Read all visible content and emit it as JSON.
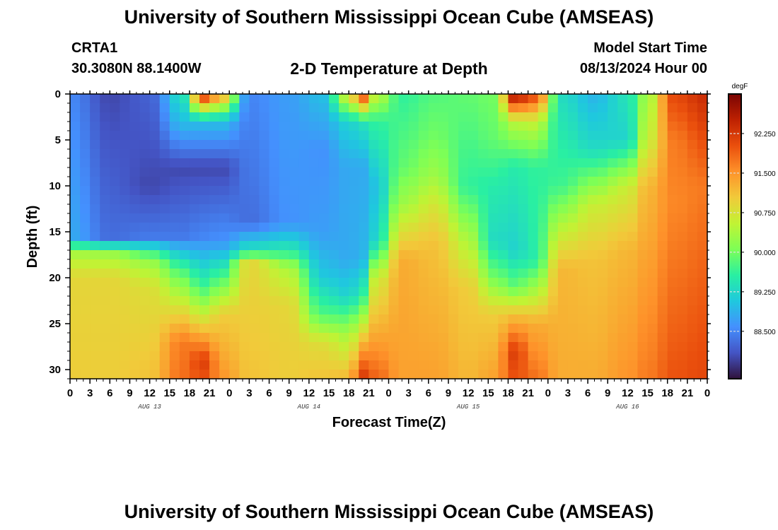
{
  "header": {
    "title": "University of Southern Mississippi Ocean Cube (AMSEAS)",
    "station_id": "CRTA1",
    "station_coords": "30.3080N  88.1400W",
    "plot_title": "2-D Temperature at Depth",
    "model_label": "Model Start Time",
    "model_time": "08/13/2024 Hour 00"
  },
  "footer": {
    "title": "University of Southern Mississippi Ocean Cube (AMSEAS)"
  },
  "chart_data": {
    "type": "heatmap",
    "title": "2-D Temperature at Depth",
    "xlabel": "Forecast Time(Z)",
    "ylabel": "Depth (ft)",
    "x_hours_range": [
      0,
      96
    ],
    "x_tick_labels": [
      "0",
      "3",
      "6",
      "9",
      "12",
      "15",
      "18",
      "21",
      "0",
      "3",
      "6",
      "9",
      "12",
      "15",
      "18",
      "21",
      "0",
      "3",
      "6",
      "9",
      "12",
      "15",
      "18",
      "21",
      "0",
      "3",
      "6",
      "9",
      "12",
      "15",
      "18",
      "21",
      "0"
    ],
    "day_labels": [
      "AUG 13",
      "AUG 14",
      "AUG 15",
      "AUG 16"
    ],
    "y_range": [
      0,
      31
    ],
    "y_ticks": [
      0,
      5,
      10,
      15,
      20,
      25,
      30
    ],
    "colorbar": {
      "unit": "degF",
      "range": [
        87.6,
        93.0
      ],
      "ticks": [
        "92.250",
        "91.500",
        "90.750",
        "90.000",
        "89.250",
        "88.500"
      ],
      "colors": [
        "#30123b",
        "#4454c4",
        "#4490fe",
        "#1fc8de",
        "#29efa2",
        "#7dff56",
        "#c1f334",
        "#f1ca3a",
        "#fe922a",
        "#ea4f0d",
        "#be2102",
        "#7a0403"
      ]
    },
    "profiles": [
      {
        "hour": 0,
        "points": [
          [
            0,
            88.5
          ],
          [
            15.5,
            88.8
          ],
          [
            17.5,
            90.4
          ],
          [
            20,
            90.9
          ],
          [
            31,
            91.0
          ]
        ]
      },
      {
        "hour": 6,
        "points": [
          [
            0,
            88.0
          ],
          [
            15.5,
            88.3
          ],
          [
            17.5,
            90.3
          ],
          [
            20,
            90.9
          ],
          [
            31,
            91.0
          ]
        ]
      },
      {
        "hour": 12,
        "points": [
          [
            0,
            88.2
          ],
          [
            10,
            88.0
          ],
          [
            15.5,
            88.4
          ],
          [
            18,
            90.2
          ],
          [
            21,
            90.8
          ],
          [
            31,
            91.1
          ]
        ]
      },
      {
        "hour": 17,
        "points": [
          [
            0,
            89.4
          ],
          [
            3,
            89.0
          ],
          [
            8,
            88.0
          ],
          [
            15.5,
            88.4
          ],
          [
            19,
            89.7
          ],
          [
            23,
            90.7
          ],
          [
            27,
            91.7
          ],
          [
            31,
            91.8
          ]
        ]
      },
      {
        "hour": 20,
        "points": [
          [
            0,
            92.5
          ],
          [
            3,
            89.0
          ],
          [
            8,
            88.0
          ],
          [
            15.5,
            88.5
          ],
          [
            21,
            89.7
          ],
          [
            25,
            90.9
          ],
          [
            29,
            92.2
          ],
          [
            31,
            92.0
          ]
        ]
      },
      {
        "hour": 23,
        "points": [
          [
            0,
            91.4
          ],
          [
            3,
            89.0
          ],
          [
            8,
            88.0
          ],
          [
            16,
            88.6
          ],
          [
            20,
            89.8
          ],
          [
            24,
            91.0
          ],
          [
            31,
            91.5
          ]
        ]
      },
      {
        "hour": 27,
        "points": [
          [
            0,
            88.5
          ],
          [
            14,
            88.3
          ],
          [
            17,
            89.4
          ],
          [
            18.5,
            90.9
          ],
          [
            31,
            91.1
          ]
        ]
      },
      {
        "hour": 33,
        "points": [
          [
            0,
            88.7
          ],
          [
            14,
            88.6
          ],
          [
            17,
            89.5
          ],
          [
            19,
            90.4
          ],
          [
            23,
            90.9
          ],
          [
            31,
            91.0
          ]
        ]
      },
      {
        "hour": 38,
        "points": [
          [
            0,
            89.0
          ],
          [
            6,
            88.6
          ],
          [
            15,
            88.7
          ],
          [
            20,
            89.1
          ],
          [
            24,
            89.8
          ],
          [
            27,
            90.8
          ],
          [
            31,
            91.1
          ]
        ]
      },
      {
        "hour": 42,
        "points": [
          [
            0,
            90.8
          ],
          [
            3,
            89.2
          ],
          [
            8,
            88.8
          ],
          [
            18,
            88.8
          ],
          [
            22,
            89.2
          ],
          [
            26,
            90.3
          ],
          [
            31,
            91.2
          ]
        ]
      },
      {
        "hour": 44,
        "points": [
          [
            0,
            92.3
          ],
          [
            3,
            89.4
          ],
          [
            8,
            88.8
          ],
          [
            18,
            88.9
          ],
          [
            22,
            89.6
          ],
          [
            27,
            91.2
          ],
          [
            31,
            92.3
          ]
        ]
      },
      {
        "hour": 46,
        "points": [
          [
            0,
            90.6
          ],
          [
            3,
            89.6
          ],
          [
            10,
            89.0
          ],
          [
            16,
            89.2
          ],
          [
            20,
            90.6
          ],
          [
            31,
            91.9
          ]
        ]
      },
      {
        "hour": 50,
        "points": [
          [
            0,
            89.6
          ],
          [
            8,
            89.9
          ],
          [
            12,
            90.3
          ],
          [
            15,
            90.8
          ],
          [
            18,
            91.3
          ],
          [
            31,
            91.4
          ]
        ]
      },
      {
        "hour": 55,
        "points": [
          [
            0,
            89.8
          ],
          [
            5,
            90.0
          ],
          [
            9,
            90.3
          ],
          [
            12,
            90.7
          ],
          [
            16,
            91.1
          ],
          [
            31,
            91.4
          ]
        ]
      },
      {
        "hour": 60,
        "points": [
          [
            0,
            89.9
          ],
          [
            10,
            89.6
          ],
          [
            15,
            90.3
          ],
          [
            21,
            91.0
          ],
          [
            31,
            91.2
          ]
        ]
      },
      {
        "hour": 64,
        "points": [
          [
            0,
            90.0
          ],
          [
            5,
            89.9
          ],
          [
            10,
            89.5
          ],
          [
            16,
            89.3
          ],
          [
            20,
            90.0
          ],
          [
            24,
            91.0
          ],
          [
            31,
            91.4
          ]
        ]
      },
      {
        "hour": 67,
        "points": [
          [
            0,
            92.8
          ],
          [
            3,
            90.5
          ],
          [
            8,
            89.5
          ],
          [
            17,
            89.2
          ],
          [
            21,
            89.9
          ],
          [
            24,
            91.1
          ],
          [
            28,
            92.2
          ],
          [
            31,
            92.0
          ]
        ]
      },
      {
        "hour": 70,
        "points": [
          [
            0,
            92.2
          ],
          [
            3,
            90.6
          ],
          [
            8,
            89.6
          ],
          [
            18,
            89.5
          ],
          [
            22,
            90.5
          ],
          [
            25,
            91.3
          ],
          [
            31,
            91.8
          ]
        ]
      },
      {
        "hour": 74,
        "points": [
          [
            0,
            89.3
          ],
          [
            10,
            89.7
          ],
          [
            14,
            90.4
          ],
          [
            19,
            91.2
          ],
          [
            31,
            91.3
          ]
        ]
      },
      {
        "hour": 79,
        "points": [
          [
            0,
            88.9
          ],
          [
            6,
            89.3
          ],
          [
            12,
            90.6
          ],
          [
            18,
            91.1
          ],
          [
            31,
            91.3
          ]
        ]
      },
      {
        "hour": 84,
        "points": [
          [
            0,
            89.4
          ],
          [
            5,
            89.2
          ],
          [
            10,
            90.6
          ],
          [
            17,
            91.2
          ],
          [
            31,
            91.5
          ]
        ]
      },
      {
        "hour": 87,
        "points": [
          [
            0,
            90.3
          ],
          [
            5,
            90.6
          ],
          [
            10,
            91.2
          ],
          [
            31,
            91.7
          ]
        ]
      },
      {
        "hour": 91,
        "points": [
          [
            0,
            92.1
          ],
          [
            5,
            91.7
          ],
          [
            12,
            91.6
          ],
          [
            31,
            92.0
          ]
        ]
      },
      {
        "hour": 96,
        "points": [
          [
            0,
            92.4
          ],
          [
            10,
            91.7
          ],
          [
            31,
            92.1
          ]
        ]
      }
    ]
  }
}
